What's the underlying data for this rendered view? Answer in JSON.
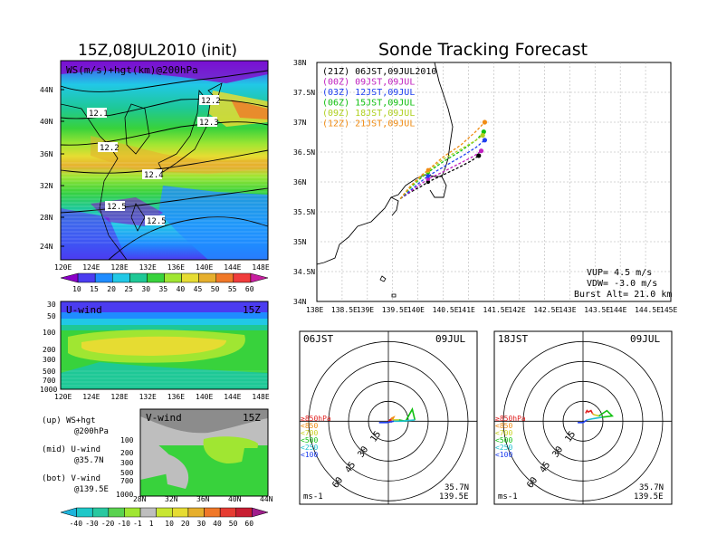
{
  "chart_data": [
    {
      "type": "heatmap",
      "title": "15Z,08JUL2010 (init)",
      "panel_label": "WS(m/s)+hgt(km)@200hPa",
      "x_ticks": [
        "120E",
        "124E",
        "128E",
        "132E",
        "136E",
        "140E",
        "144E",
        "148E"
      ],
      "y_ticks": [
        "24N",
        "28N",
        "32N",
        "36N",
        "40N",
        "44N"
      ],
      "contour_labels": [
        "12.1",
        "12.2",
        "12.2",
        "12.3",
        "12.4",
        "12.5",
        "12.5"
      ],
      "colorbar_ticks": [
        "10",
        "15",
        "20",
        "25",
        "30",
        "35",
        "40",
        "45",
        "50",
        "55",
        "60"
      ],
      "colorbar_colors": [
        "#8a00c8",
        "#4b3cf0",
        "#1f8cff",
        "#21c8e6",
        "#1ec896",
        "#38d23c",
        "#a0e632",
        "#e6dc32",
        "#e6af2d",
        "#f07828",
        "#f03c3c",
        "#c81ea0"
      ]
    },
    {
      "type": "heatmap",
      "panel_label": "U-wind",
      "time_label": "15Z",
      "y_ticks": [
        "30",
        "50",
        "100",
        "200",
        "300",
        "500",
        "700",
        "1000"
      ],
      "x_ticks": [
        "120E",
        "124E",
        "128E",
        "132E",
        "136E",
        "140E",
        "144E",
        "148E"
      ]
    },
    {
      "type": "heatmap",
      "panel_label": "V-wind",
      "time_label": "15Z",
      "y_ticks": [
        "100",
        "200",
        "300",
        "500",
        "700",
        "1000"
      ],
      "x_ticks": [
        "28N",
        "32N",
        "36N",
        "40N",
        "44N"
      ],
      "colorbar_ticks": [
        "-40",
        "-30",
        "-20",
        "-10",
        "-1",
        "1",
        "10",
        "20",
        "30",
        "40",
        "50",
        "60"
      ],
      "colorbar_colors": [
        "#1eb4dc",
        "#1ec8c8",
        "#28c8a0",
        "#5ad250",
        "#a0e632",
        "#bebebe",
        "#c8e632",
        "#e6dc32",
        "#e6af2d",
        "#f07828",
        "#e63c32",
        "#c81e32",
        "#a01e8c"
      ]
    },
    {
      "type": "line",
      "title": "Sonde Tracking Forecast",
      "x_ticks": [
        "138E",
        "138.5E",
        "139E",
        "139.5E",
        "140E",
        "140.5E",
        "141E",
        "141.5E",
        "142E",
        "142.5E",
        "143E",
        "143.5E",
        "144E",
        "144.5E",
        "145E"
      ],
      "y_ticks": [
        "34N",
        "34.5N",
        "35N",
        "35.5N",
        "36N",
        "36.5N",
        "37N",
        "37.5N",
        "38N"
      ],
      "xlim": [
        138,
        145
      ],
      "ylim": [
        34,
        38
      ],
      "series": [
        {
          "name": "(21Z) 06JST,09JUL2010",
          "color": "#000000",
          "x": [
            139.65,
            139.85,
            140.05,
            140.2,
            140.45,
            140.75,
            141.05,
            141.2
          ],
          "y": [
            35.72,
            35.83,
            35.92,
            36.0,
            36.1,
            36.22,
            36.35,
            36.44
          ]
        },
        {
          "name": "(00Z) 09JST,09JUL",
          "color": "#c020c0",
          "x": [
            139.65,
            139.85,
            140.05,
            140.2,
            140.5,
            140.8,
            141.1,
            141.25
          ],
          "y": [
            35.72,
            35.84,
            35.96,
            36.05,
            36.17,
            36.3,
            36.43,
            36.52
          ]
        },
        {
          "name": "(03Z) 12JST,09JUL",
          "color": "#2040f0",
          "x": [
            139.65,
            139.85,
            140.05,
            140.2,
            140.5,
            140.85,
            141.15,
            141.32
          ],
          "y": [
            35.72,
            35.86,
            36.0,
            36.1,
            36.25,
            36.42,
            36.58,
            36.7
          ]
        },
        {
          "name": "(06Z) 15JST,09JUL",
          "color": "#10c010",
          "x": [
            139.65,
            139.85,
            140.05,
            140.2,
            140.5,
            140.85,
            141.15,
            141.3
          ],
          "y": [
            35.72,
            35.9,
            36.06,
            36.16,
            36.34,
            36.52,
            36.7,
            36.84
          ]
        },
        {
          "name": "(09Z) 18JST,09JUL",
          "color": "#b0d020",
          "x": [
            139.65,
            139.85,
            140.05,
            140.2,
            140.5,
            140.85,
            141.15,
            141.28
          ],
          "y": [
            35.72,
            35.92,
            36.08,
            36.18,
            36.38,
            36.55,
            36.7,
            36.78
          ]
        },
        {
          "name": "(12Z) 21JST,09JUL",
          "color": "#f08c14",
          "x": [
            139.65,
            139.85,
            140.05,
            140.2,
            140.5,
            140.85,
            141.15,
            141.32
          ],
          "y": [
            35.72,
            35.93,
            36.1,
            36.2,
            36.42,
            36.62,
            36.85,
            37.0
          ]
        }
      ],
      "params": [
        "VUP= 4.5 m/s",
        "VDW= -3.0 m/s",
        "Burst Alt= 21.0 km"
      ]
    },
    {
      "type": "line",
      "panel": "hodograph",
      "left_label": "06JST",
      "right_label": "09JUL",
      "ring_labels": [
        "15",
        "30",
        "45",
        "60"
      ],
      "legend": [
        {
          "label": "≥850hPa",
          "color": "#e02020"
        },
        {
          "label": "<850",
          "color": "#f08c14"
        },
        {
          "label": "<700",
          "color": "#c8d020"
        },
        {
          "label": "<500",
          "color": "#10c010"
        },
        {
          "label": "<250",
          "color": "#20c0d0"
        },
        {
          "label": "<100",
          "color": "#2040f0"
        }
      ],
      "unit": "ms-1",
      "loc_lat": "35.7N",
      "loc_lon": "139.5E",
      "series": [
        {
          "name": "≥850hPa",
          "color": "#e02020",
          "x": [
            0,
            1,
            2,
            2
          ],
          "y": [
            0,
            1,
            0,
            2
          ]
        },
        {
          "name": "<850",
          "color": "#f08c14",
          "x": [
            2,
            4,
            3
          ],
          "y": [
            2,
            3,
            1
          ]
        },
        {
          "name": "<700",
          "color": "#c8d020",
          "x": [
            3,
            8
          ],
          "y": [
            1,
            1
          ]
        },
        {
          "name": "<500",
          "color": "#10c010",
          "x": [
            8,
            13,
            18,
            20
          ],
          "y": [
            1,
            0,
            9,
            1
          ]
        },
        {
          "name": "<250",
          "color": "#20c0d0",
          "x": [
            20,
            10,
            4
          ],
          "y": [
            1,
            0,
            0
          ]
        },
        {
          "name": "<100",
          "color": "#2040f0",
          "x": [
            4,
            -1,
            -7
          ],
          "y": [
            0,
            -1,
            -1
          ]
        }
      ]
    },
    {
      "type": "line",
      "panel": "hodograph",
      "left_label": "18JST",
      "right_label": "09JUL",
      "ring_labels": [
        "15",
        "30",
        "45",
        "60"
      ],
      "legend": [
        {
          "label": "≥850hPa",
          "color": "#e02020"
        },
        {
          "label": "<850",
          "color": "#f08c14"
        },
        {
          "label": "<700",
          "color": "#c8d020"
        },
        {
          "label": "<500",
          "color": "#10c010"
        },
        {
          "label": "<250",
          "color": "#20c0d0"
        },
        {
          "label": "<100",
          "color": "#2040f0"
        }
      ],
      "unit": "ms-1",
      "loc_lat": "35.7N",
      "loc_lon": "139.5E",
      "series": [
        {
          "name": "≥850hPa",
          "color": "#e02020",
          "x": [
            2,
            3,
            4,
            6,
            7
          ],
          "y": [
            6,
            8,
            7,
            8,
            6
          ]
        },
        {
          "name": "<850",
          "color": "#f08c14",
          "x": [
            7,
            8
          ],
          "y": [
            6,
            5
          ]
        },
        {
          "name": "<700",
          "color": "#c8d020",
          "x": [
            8,
            12
          ],
          "y": [
            5,
            4
          ]
        },
        {
          "name": "<500",
          "color": "#10c010",
          "x": [
            12,
            18,
            22,
            14
          ],
          "y": [
            4,
            8,
            4,
            3
          ]
        },
        {
          "name": "<250",
          "color": "#20c0d0",
          "x": [
            14,
            8,
            3
          ],
          "y": [
            3,
            2,
            1
          ]
        },
        {
          "name": "<100",
          "color": "#2040f0",
          "x": [
            3,
            0,
            -4
          ],
          "y": [
            1,
            -1,
            -1
          ]
        }
      ]
    }
  ],
  "legend_notes": {
    "line1": "(up) WS+hgt",
    "line2": "@200hPa",
    "line3": "(mid) U-wind",
    "line4": "@35.7N",
    "line5": "(bot) V-wind",
    "line6": "@139.5E"
  }
}
